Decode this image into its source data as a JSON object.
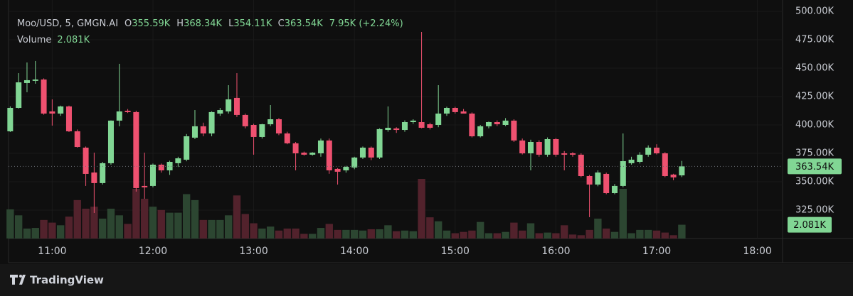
{
  "chart_data": {
    "type": "candlestick",
    "legend": {
      "symbol": "Moo/USD, 5, GMGN.AI",
      "fields": [
        {
          "key": "O",
          "text": "355.59K"
        },
        {
          "key": "H",
          "text": "368.34K"
        },
        {
          "key": "L",
          "text": "354.11K"
        },
        {
          "key": "C",
          "text": "363.54K"
        }
      ],
      "change": "7.95K (+2.24%)",
      "volume_title": "Volume",
      "volume_value": "2.081K"
    },
    "x": [
      635,
      640,
      645,
      650,
      655,
      660,
      665,
      670,
      675,
      680,
      685,
      690,
      695,
      700,
      705,
      710,
      715,
      720,
      725,
      730,
      735,
      740,
      745,
      750,
      755,
      760,
      765,
      770,
      775,
      780,
      785,
      790,
      795,
      800,
      805,
      810,
      815,
      820,
      825,
      830,
      835,
      840,
      845,
      850,
      855,
      860,
      865,
      870,
      875,
      880,
      885,
      890,
      895,
      900,
      905,
      910,
      915,
      920,
      925,
      930,
      935,
      940,
      945,
      950,
      955,
      960,
      965,
      970,
      975,
      980,
      985,
      990,
      995,
      1000,
      1005,
      1010,
      1015,
      1020,
      1025,
      1030,
      1035
    ],
    "open": [
      394.4,
      415,
      436.9,
      438.8,
      440,
      411.9,
      410,
      416.3,
      394.4,
      380,
      358.1,
      348.8,
      366.3,
      403.8,
      412.5,
      411.3,
      346.3,
      346.3,
      365,
      360,
      366.3,
      369.4,
      388.8,
      398.8,
      392.5,
      410,
      411.9,
      423.8,
      408.8,
      400,
      389.4,
      400.6,
      405,
      392.5,
      383.8,
      375.6,
      373.8,
      375,
      386.3,
      361.3,
      360,
      362.5,
      371.3,
      380,
      371.3,
      395.6,
      396.9,
      395.6,
      402.5,
      402.5,
      400.6,
      400,
      410,
      415,
      411.9,
      410,
      390,
      398.8,
      402.5,
      400,
      403.8,
      386.3,
      375,
      385,
      373.8,
      387.5,
      375,
      375,
      373.8,
      355,
      347.5,
      356.9,
      340,
      346.3,
      366.3,
      367.5,
      373.8,
      380,
      375,
      356.3,
      355.59
    ],
    "high": [
      416.3,
      445.6,
      455,
      456.3,
      441,
      422.5,
      417,
      417,
      396,
      381,
      375.6,
      367.5,
      404,
      453.8,
      414,
      412.5,
      375.6,
      366,
      366,
      368.5,
      372,
      392,
      413.1,
      402,
      412,
      415,
      435,
      445.6,
      410,
      401,
      401,
      417.5,
      406,
      394,
      385,
      376.5,
      376,
      388,
      388,
      362,
      364,
      372,
      381,
      381,
      397,
      416.3,
      398,
      404,
      405,
      481.9,
      402,
      435,
      416,
      416,
      414,
      411,
      400,
      403,
      404,
      406,
      405,
      388,
      387,
      386.5,
      389,
      388.5,
      377,
      376,
      375,
      356,
      360,
      358,
      348,
      392.5,
      372,
      376,
      382,
      383,
      376,
      357,
      368.34
    ],
    "low": [
      393.8,
      414.4,
      428.8,
      436.3,
      409,
      399.4,
      408,
      393.8,
      380,
      346.3,
      322.5,
      347.5,
      365,
      398.8,
      410.5,
      341.3,
      335,
      345,
      358,
      356,
      363,
      368,
      387.5,
      390,
      390,
      408,
      410,
      407,
      397,
      373.8,
      388,
      399,
      391,
      383,
      360,
      373,
      373,
      372,
      357,
      347.5,
      358,
      361,
      370,
      369,
      370,
      394,
      393,
      394,
      401,
      397,
      396,
      398,
      408,
      410,
      410,
      389,
      389,
      397,
      399,
      399,
      385,
      374,
      360,
      372,
      372,
      372,
      360,
      372,
      354,
      318.8,
      346,
      339,
      339,
      345,
      365,
      366,
      372,
      374,
      354,
      351.3,
      354.11
    ],
    "close": [
      415,
      437.5,
      439.4,
      440,
      410,
      410,
      416.3,
      394.4,
      380.6,
      356.9,
      348.8,
      366.3,
      403.8,
      411.9,
      411.3,
      344.4,
      345,
      365,
      360,
      367.5,
      370.6,
      390,
      398.8,
      392.5,
      411.3,
      413.1,
      422.5,
      408.8,
      398.8,
      389.4,
      400.6,
      405,
      392.5,
      383.8,
      375,
      373.8,
      375.6,
      386.3,
      360,
      358.8,
      363.1,
      371.3,
      380,
      371.3,
      396.3,
      397.5,
      395.6,
      402.5,
      403.8,
      397.5,
      397.5,
      410,
      415,
      411.3,
      410,
      390,
      398.8,
      402.5,
      400.6,
      403.8,
      386.3,
      375,
      385,
      373.8,
      387.5,
      373.8,
      373.8,
      373.8,
      355,
      347.5,
      358.1,
      340,
      346.3,
      368.1,
      369.4,
      373.8,
      380,
      375,
      355,
      353.8,
      363.54
    ],
    "volume": [
      4.4,
      3.5,
      1.5,
      1.6,
      2.8,
      2.4,
      2.0,
      3.3,
      5.8,
      4.5,
      4.8,
      3.0,
      4.5,
      3.5,
      2.2,
      7.5,
      6.0,
      4.8,
      4.3,
      3.9,
      3.9,
      6.7,
      5.8,
      2.8,
      2.8,
      2.8,
      3.5,
      6.5,
      3.7,
      2.3,
      1.5,
      1.8,
      1.2,
      1.5,
      1.5,
      0.7,
      0.7,
      1.6,
      2.2,
      1.3,
      1.3,
      1.3,
      1.2,
      1.4,
      1.4,
      2.0,
      1.1,
      1.2,
      1.1,
      9.0,
      3.2,
      2.6,
      1.2,
      0.8,
      1.0,
      1.2,
      2.5,
      0.8,
      0.8,
      1.0,
      2.4,
      1.2,
      2.3,
      0.8,
      0.9,
      0.8,
      2.0,
      0.6,
      0.5,
      1.3,
      3.0,
      1.5,
      1.0,
      7.5,
      0.8,
      1.3,
      1.3,
      1.2,
      0.9,
      0.5,
      2.081
    ],
    "xlim": [
      634,
      1095
    ],
    "xticks": [
      {
        "value": 660,
        "label": "11:00"
      },
      {
        "value": 720,
        "label": "12:00"
      },
      {
        "value": 780,
        "label": "13:00"
      },
      {
        "value": 840,
        "label": "14:00"
      },
      {
        "value": 900,
        "label": "15:00"
      },
      {
        "value": 960,
        "label": "16:00"
      },
      {
        "value": 1020,
        "label": "17:00"
      },
      {
        "value": 1080,
        "label": "18:00"
      }
    ],
    "ylim": [
      300,
      510
    ],
    "yticks": [
      {
        "value": 325,
        "label": "325.00K"
      },
      {
        "value": 350,
        "label": "350.00K"
      },
      {
        "value": 375,
        "label": "375.00K"
      },
      {
        "value": 400,
        "label": "400.00K"
      },
      {
        "value": 425,
        "label": "425.00K"
      },
      {
        "value": 450,
        "label": "450.00K"
      },
      {
        "value": 475,
        "label": "475.00K"
      },
      {
        "value": 500,
        "label": "500.00K"
      }
    ],
    "volume_lim": [
      0,
      36
    ],
    "grid": true,
    "up_color": "#81d694",
    "down_color": "#ef5170",
    "volume_up_color": "#2c4631",
    "volume_down_color": "#52222c"
  },
  "brand": "TradingView"
}
